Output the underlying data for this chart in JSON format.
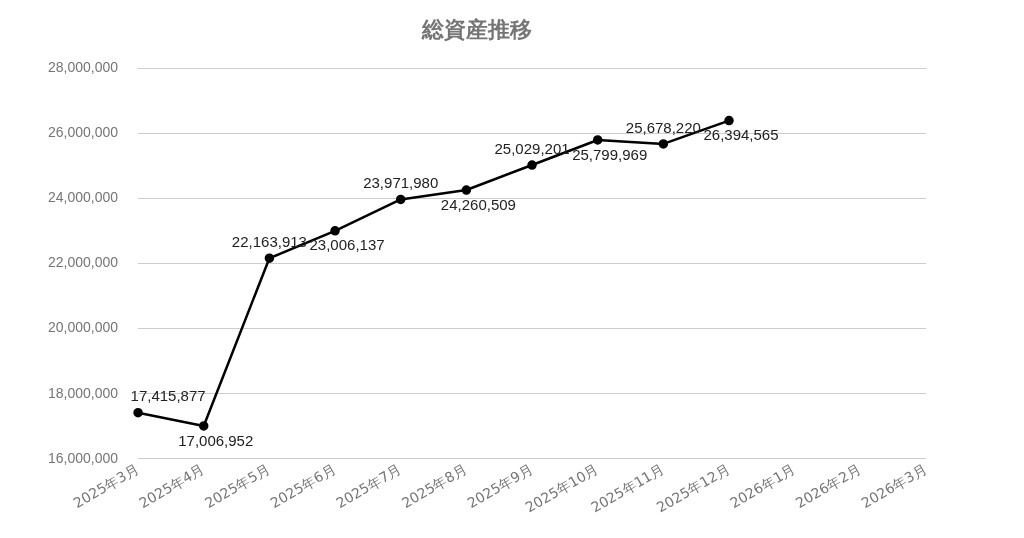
{
  "chart_data": {
    "type": "line",
    "title": "総資産推移",
    "categories": [
      "2025年3月",
      "2025年4月",
      "2025年5月",
      "2025年6月",
      "2025年7月",
      "2025年8月",
      "2025年9月",
      "2025年10月",
      "2025年11月",
      "2025年12月",
      "2026年1月",
      "2026年2月",
      "2026年3月"
    ],
    "series": [
      {
        "color": "#000000",
        "values": [
          17415877,
          17006952,
          22163913,
          23006137,
          23971980,
          24260509,
          25029201,
          25799969,
          25678220,
          26394565,
          null,
          null,
          null
        ],
        "value_labels": [
          "17,415,877",
          "17,006,952",
          "22,163,913",
          "23,006,137",
          "23,971,980",
          "24,260,509",
          "25,029,201",
          "25,799,969",
          "25,678,220",
          "26,394,565",
          null,
          null,
          null
        ]
      }
    ],
    "ylim": [
      16000000,
      28000000
    ],
    "yticks": [
      {
        "value": 16000000,
        "label": "16,000,000"
      },
      {
        "value": 18000000,
        "label": "18,000,000"
      },
      {
        "value": 20000000,
        "label": "20,000,000"
      },
      {
        "value": 22000000,
        "label": "22,000,000"
      },
      {
        "value": 24000000,
        "label": "24,000,000"
      },
      {
        "value": 26000000,
        "label": "26,000,000"
      },
      {
        "value": 28000000,
        "label": "28,000,000"
      }
    ],
    "grid": "y",
    "legend": false,
    "marker": "circle",
    "line_style": "solid"
  }
}
